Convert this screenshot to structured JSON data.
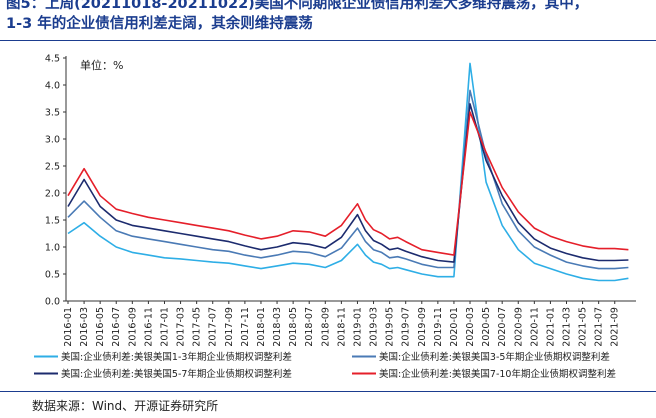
{
  "figure": {
    "title_line1": "图5：上周(20211018-20211022)美国不同期限企业债信用利差大多维持震荡，其中，",
    "title_line2": "1-3 年的企业债信用利差走阔，其余则维持震荡",
    "source": "数据来源：Wind、开源证券研究所"
  },
  "chart_data": {
    "type": "line",
    "unit_label": "单位：%",
    "ylim": [
      0,
      4.5
    ],
    "y_ticks": [
      "0.0",
      "0.5",
      "1.0",
      "1.5",
      "2.0",
      "2.5",
      "3.0",
      "3.5",
      "4.0",
      "4.5"
    ],
    "x_ticks": [
      "2016-01",
      "2016-03",
      "2016-05",
      "2016-07",
      "2016-09",
      "2016-11",
      "2017-01",
      "2017-03",
      "2017-05",
      "2017-07",
      "2017-09",
      "2017-11",
      "2018-01",
      "2018-03",
      "2018-05",
      "2018-07",
      "2018-09",
      "2018-11",
      "2019-01",
      "2019-03",
      "2019-05",
      "2019-07",
      "2019-09",
      "2019-11",
      "2020-01",
      "2020-03",
      "2020-05",
      "2020-07",
      "2020-09",
      "2020-11",
      "2021-01",
      "2021-03",
      "2021-05",
      "2021-07",
      "2021-09"
    ],
    "anchors_x": [
      0,
      2,
      4,
      6,
      8,
      10,
      12,
      14,
      16,
      18,
      20,
      22,
      24,
      26,
      28,
      30,
      32,
      34,
      36,
      37,
      38,
      39,
      40,
      41,
      42,
      44,
      46,
      48,
      50,
      52,
      54,
      56,
      58,
      60,
      62,
      64,
      66,
      68,
      69.7
    ],
    "series": [
      {
        "name": "美国:企业债利差:美银美国1-3年期企业债期权调整利差",
        "color": "#2eaee6",
        "values": [
          1.25,
          1.45,
          1.2,
          1.0,
          0.9,
          0.85,
          0.8,
          0.78,
          0.75,
          0.72,
          0.7,
          0.65,
          0.6,
          0.65,
          0.7,
          0.68,
          0.62,
          0.75,
          1.05,
          0.85,
          0.72,
          0.68,
          0.6,
          0.62,
          0.58,
          0.5,
          0.45,
          0.45,
          4.4,
          2.2,
          1.4,
          0.95,
          0.7,
          0.6,
          0.5,
          0.42,
          0.38,
          0.38,
          0.42
        ]
      },
      {
        "name": "美国:企业债利差:美银美国3-5年期企业债期权调整利差",
        "color": "#4a7ab5",
        "values": [
          1.55,
          1.85,
          1.55,
          1.3,
          1.2,
          1.15,
          1.1,
          1.05,
          1.0,
          0.95,
          0.92,
          0.85,
          0.8,
          0.85,
          0.92,
          0.9,
          0.82,
          0.98,
          1.35,
          1.1,
          0.95,
          0.9,
          0.8,
          0.82,
          0.78,
          0.68,
          0.62,
          0.62,
          3.9,
          2.7,
          1.8,
          1.3,
          1.0,
          0.85,
          0.72,
          0.65,
          0.6,
          0.6,
          0.62
        ]
      },
      {
        "name": "美国:企业债利差:美银美国5-7年期企业债期权调整利差",
        "color": "#1c2b6e",
        "values": [
          1.75,
          2.25,
          1.75,
          1.5,
          1.4,
          1.35,
          1.3,
          1.25,
          1.2,
          1.15,
          1.1,
          1.02,
          0.95,
          1.0,
          1.08,
          1.05,
          0.98,
          1.18,
          1.6,
          1.3,
          1.12,
          1.05,
          0.95,
          0.98,
          0.92,
          0.82,
          0.75,
          0.72,
          3.65,
          2.6,
          1.95,
          1.45,
          1.15,
          0.98,
          0.88,
          0.8,
          0.75,
          0.75,
          0.76
        ]
      },
      {
        "name": "美国:企业债利差:美银美国7-10年期企业债期权调整利差",
        "color": "#e51f2a",
        "values": [
          1.95,
          2.45,
          1.95,
          1.7,
          1.62,
          1.55,
          1.5,
          1.45,
          1.4,
          1.35,
          1.3,
          1.22,
          1.15,
          1.2,
          1.3,
          1.28,
          1.2,
          1.4,
          1.8,
          1.5,
          1.32,
          1.25,
          1.15,
          1.18,
          1.1,
          0.95,
          0.9,
          0.85,
          3.5,
          2.75,
          2.1,
          1.65,
          1.35,
          1.2,
          1.1,
          1.02,
          0.97,
          0.97,
          0.95
        ]
      }
    ]
  }
}
